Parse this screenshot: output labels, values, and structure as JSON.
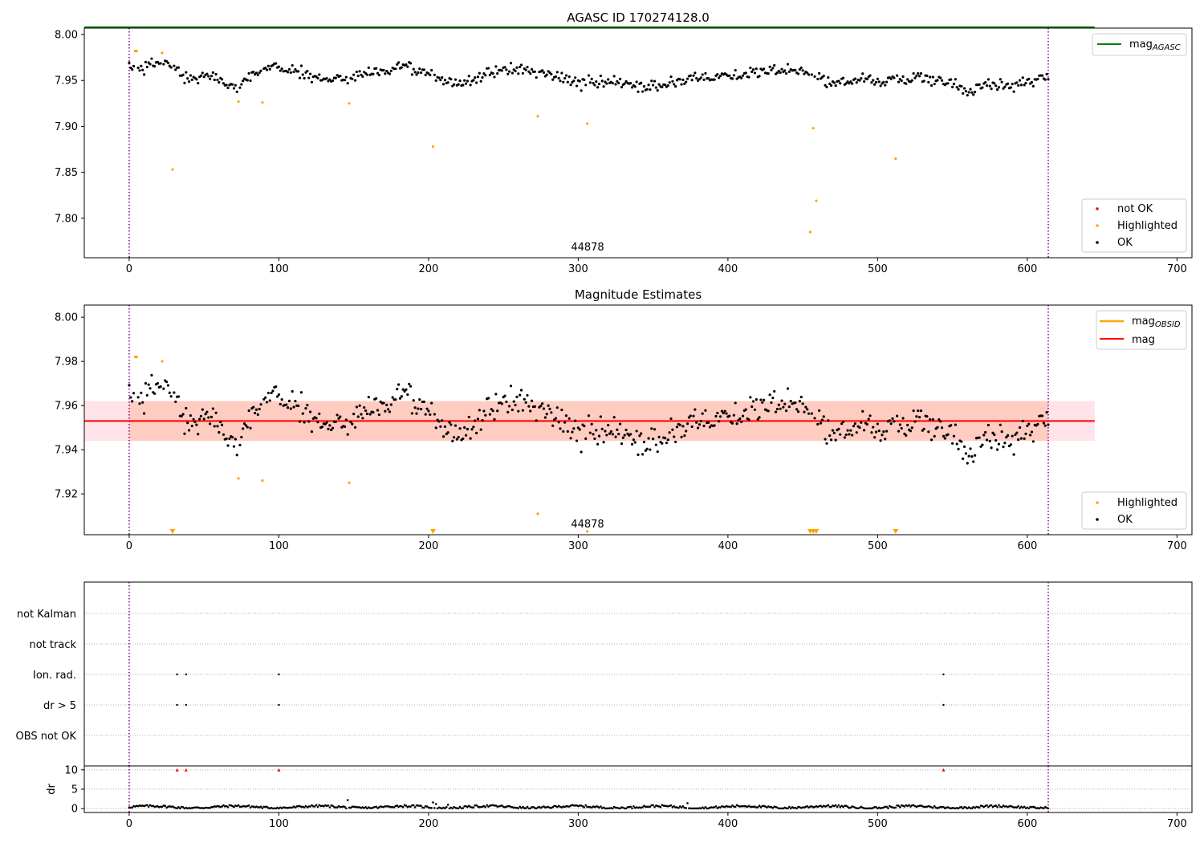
{
  "chart_data": [
    {
      "type": "scatter",
      "title": "AGASC ID 170274128.0",
      "xlim": [
        -30,
        710
      ],
      "ylim": [
        7.757,
        8.007
      ],
      "xticks": [
        0,
        100,
        200,
        300,
        400,
        500,
        600,
        700
      ],
      "yticks": [
        "7.80",
        "7.85",
        "7.90",
        "7.95",
        "8.00"
      ],
      "annotation": "44878",
      "vlines": [
        0,
        614
      ],
      "hline": {
        "name": "mag",
        "name_sub": "AGASC",
        "value": 8.008,
        "color": "#008000"
      },
      "legend_lines": [
        {
          "label": "mag",
          "sub": "AGASC",
          "color": "#008000"
        }
      ],
      "legend_points": [
        {
          "label": "not OK",
          "color": "#ff0000"
        },
        {
          "label": "Highlighted",
          "color": "#ffa500"
        },
        {
          "label": "OK",
          "color": "#000000"
        }
      ],
      "highlighted": [
        [
          4,
          7.982
        ],
        [
          5,
          7.982
        ],
        [
          22,
          7.98
        ],
        [
          29,
          7.853
        ],
        [
          73,
          7.927
        ],
        [
          89,
          7.926
        ],
        [
          147,
          7.925
        ],
        [
          203,
          7.878
        ],
        [
          273,
          7.911
        ],
        [
          306,
          7.903
        ],
        [
          455,
          7.785
        ],
        [
          457,
          7.898
        ],
        [
          459,
          7.819
        ],
        [
          512,
          7.865
        ]
      ]
    },
    {
      "type": "scatter",
      "title": "Magnitude Estimates",
      "xlim": [
        -30,
        710
      ],
      "ylim": [
        7.9015,
        8.0055
      ],
      "xticks": [
        0,
        100,
        200,
        300,
        400,
        500,
        600,
        700
      ],
      "yticks": [
        "7.92",
        "7.94",
        "7.96",
        "7.98",
        "8.00"
      ],
      "annotation": "44878",
      "vlines": [
        0,
        614
      ],
      "mag": 7.953,
      "band_outer": [
        7.944,
        7.962
      ],
      "band_inner": [
        7.944,
        7.962
      ],
      "legend_lines": [
        {
          "label": "mag",
          "sub": "OBSID",
          "color": "#ffa500"
        },
        {
          "label": "mag",
          "sub": "",
          "color": "#ff0000"
        }
      ],
      "legend_points": [
        {
          "label": "Highlighted",
          "color": "#ffa500"
        },
        {
          "label": "OK",
          "color": "#000000"
        }
      ],
      "highlighted": [
        [
          4,
          7.982
        ],
        [
          5,
          7.982
        ],
        [
          22,
          7.98
        ],
        [
          73,
          7.927
        ],
        [
          89,
          7.926
        ],
        [
          147,
          7.925
        ],
        [
          273,
          7.911
        ],
        [
          306,
          7.903
        ]
      ],
      "below_range_markers": [
        29,
        203,
        455,
        457,
        459,
        512
      ]
    },
    {
      "type": "scatter",
      "title": "",
      "flag_labels": [
        "not Kalman",
        "not track",
        "Ion. rad.",
        "dr > 5",
        "OBS not OK"
      ],
      "flags": {
        "Ion. rad.": [
          32,
          38,
          100,
          544
        ],
        "dr > 5": [
          32,
          38,
          100,
          544
        ]
      },
      "vlines": [
        0,
        614
      ]
    },
    {
      "type": "scatter",
      "ylabel": "dr",
      "xlim": [
        -30,
        710
      ],
      "ylim": [
        -1,
        11
      ],
      "yticks": [
        "0",
        "5",
        "10"
      ],
      "xticks": [
        0,
        100,
        200,
        300,
        400,
        500,
        600,
        700
      ],
      "outliers": [
        [
          32,
          10
        ],
        [
          38,
          10
        ],
        [
          100,
          10
        ],
        [
          544,
          10
        ]
      ],
      "peaks": [
        [
          146,
          2.2
        ],
        [
          203,
          1.6
        ],
        [
          205,
          1.2
        ],
        [
          213,
          1.0
        ],
        [
          373,
          1.4
        ]
      ],
      "vlines": [
        0,
        614
      ]
    }
  ],
  "colors": {
    "ok": "#000000",
    "highlighted": "#ffa500",
    "not_ok": "#ff0000",
    "agasc_line": "#008000",
    "mag_line": "#ff0000",
    "band_outer": "#ffc0cb",
    "band_inner": "#ffa07a",
    "vline": "#800080",
    "grid": "#b0b0b0"
  }
}
